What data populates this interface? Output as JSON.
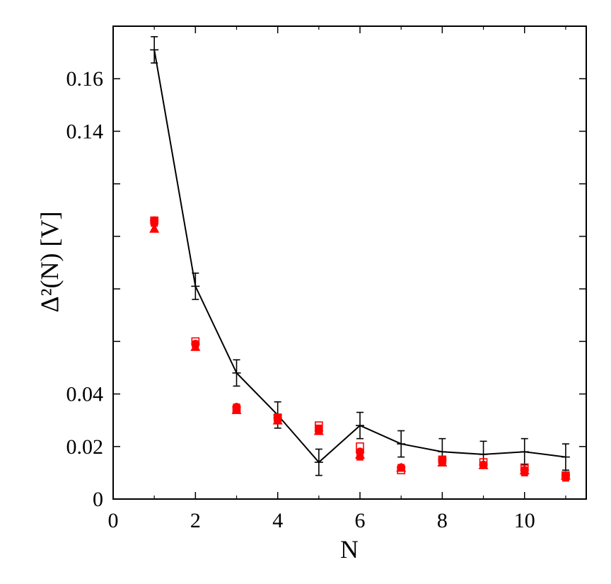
{
  "chart_data": {
    "type": "scatter",
    "xlabel": "N",
    "ylabel": "Δ²(N)    [V]",
    "xlim": [
      0,
      11.5
    ],
    "ylim": [
      0,
      0.18
    ],
    "x_ticks": [
      0,
      2,
      4,
      6,
      8,
      10
    ],
    "x_tick_labels": [
      "0",
      "2",
      "4",
      "6",
      "8",
      "10"
    ],
    "y_ticks": [
      0,
      0.02,
      0.04,
      0.06,
      0.08,
      0.1,
      0.12,
      0.14,
      0.16
    ],
    "y_tick_labels": [
      "0",
      "0.02",
      "0.04",
      "",
      "",
      "",
      "",
      "0.14",
      "0.16"
    ],
    "grid": false,
    "legend": "none",
    "colors": {
      "line": "#000000",
      "markers": "#ff0000"
    },
    "series": [
      {
        "style": "line-errorbars",
        "x": [
          1,
          2,
          3,
          4,
          5,
          6,
          7,
          8,
          9,
          10,
          11
        ],
        "y": [
          0.171,
          0.081,
          0.048,
          0.032,
          0.014,
          0.028,
          0.021,
          0.018,
          0.017,
          0.018,
          0.016
        ],
        "yerr": [
          0.005,
          0.005,
          0.005,
          0.005,
          0.005,
          0.005,
          0.005,
          0.005,
          0.005,
          0.005,
          0.005
        ]
      },
      {
        "style": "filled-circle",
        "x": [
          1,
          2,
          3,
          4,
          5,
          6,
          7,
          8,
          9,
          10,
          11
        ],
        "y": [
          0.106,
          0.059,
          0.035,
          0.031,
          0.026,
          0.018,
          0.012,
          0.015,
          0.013,
          0.011,
          0.009
        ]
      },
      {
        "style": "filled-triangle",
        "x": [
          1,
          2,
          3,
          4,
          5,
          6,
          7,
          8,
          9,
          10,
          11
        ],
        "y": [
          0.103,
          0.058,
          0.034,
          0.03,
          0.026,
          0.017,
          0.012,
          0.014,
          0.013,
          0.011,
          0.009
        ]
      },
      {
        "style": "open-square",
        "x": [
          1,
          2,
          3,
          4,
          5,
          6,
          7,
          8,
          9,
          10,
          11
        ],
        "y": [
          0.106,
          0.06,
          0.034,
          0.031,
          0.028,
          0.02,
          0.011,
          0.015,
          0.014,
          0.012,
          0.009
        ]
      },
      {
        "style": "filled-square",
        "x": [
          1,
          2,
          3,
          4,
          5,
          6,
          7,
          8,
          9,
          10,
          11
        ],
        "y": [
          0.105,
          0.059,
          0.035,
          0.031,
          0.027,
          0.016,
          0.012,
          0.015,
          0.013,
          0.01,
          0.008
        ]
      }
    ]
  }
}
